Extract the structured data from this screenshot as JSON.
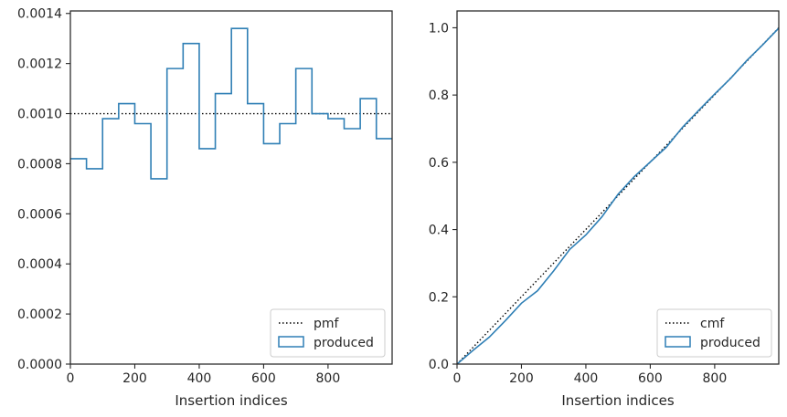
{
  "chart_data": [
    {
      "type": "step",
      "xlabel": "Insertion indices",
      "ylabel": "",
      "xlim": [
        0,
        999
      ],
      "ylim": [
        0,
        0.00141
      ],
      "x_ticks": [
        0,
        200,
        400,
        600,
        800
      ],
      "x_tick_labels": [
        "0",
        "200",
        "400",
        "600",
        "800"
      ],
      "y_ticks": [
        0,
        0.0002,
        0.0004,
        0.0006,
        0.0008,
        0.001,
        0.0012,
        0.0014
      ],
      "y_tick_labels": [
        "0.0000",
        "0.0002",
        "0.0004",
        "0.0006",
        "0.0008",
        "0.0010",
        "0.0012",
        "0.0014"
      ],
      "reference_line": {
        "name": "pmf",
        "value": 0.001,
        "style": "dotted",
        "color": "#000000"
      },
      "series": [
        {
          "name": "produced",
          "color": "#2f7fb5",
          "bin_width": 50,
          "bin_starts": [
            0,
            50,
            100,
            150,
            200,
            250,
            300,
            350,
            400,
            450,
            500,
            550,
            600,
            650,
            700,
            750,
            800,
            850,
            900,
            950
          ],
          "values": [
            0.00082,
            0.00078,
            0.00098,
            0.00104,
            0.00096,
            0.00074,
            0.00118,
            0.00128,
            0.00086,
            0.00108,
            0.00134,
            0.00104,
            0.00088,
            0.00096,
            0.00118,
            0.001,
            0.00098,
            0.00094,
            0.00106,
            0.0009
          ]
        }
      ],
      "legend": {
        "position": "lower-right",
        "entries": [
          "pmf",
          "produced"
        ]
      }
    },
    {
      "type": "line",
      "xlabel": "Insertion indices",
      "ylabel": "",
      "xlim": [
        0,
        999
      ],
      "ylim": [
        0,
        1.05
      ],
      "x_ticks": [
        0,
        200,
        400,
        600,
        800
      ],
      "x_tick_labels": [
        "0",
        "200",
        "400",
        "600",
        "800"
      ],
      "y_ticks": [
        0,
        0.2,
        0.4,
        0.6,
        0.8,
        1.0
      ],
      "y_tick_labels": [
        "0.0",
        "0.2",
        "0.4",
        "0.6",
        "0.8",
        "1.0"
      ],
      "reference_line": {
        "name": "cmf",
        "points": [
          [
            0,
            0
          ],
          [
            999,
            1.0
          ]
        ],
        "style": "dotted",
        "color": "#000000"
      },
      "series": [
        {
          "name": "produced",
          "color": "#2f7fb5",
          "x": [
            0,
            50,
            100,
            150,
            200,
            250,
            300,
            350,
            400,
            450,
            500,
            550,
            600,
            650,
            700,
            750,
            800,
            850,
            900,
            950,
            999
          ],
          "y": [
            0,
            0.041,
            0.08,
            0.129,
            0.181,
            0.218,
            0.277,
            0.341,
            0.384,
            0.438,
            0.505,
            0.557,
            0.601,
            0.645,
            0.704,
            0.754,
            0.803,
            0.85,
            0.903,
            0.95,
            0.999
          ]
        }
      ],
      "legend": {
        "position": "lower-right",
        "entries": [
          "cmf",
          "produced"
        ]
      }
    }
  ]
}
